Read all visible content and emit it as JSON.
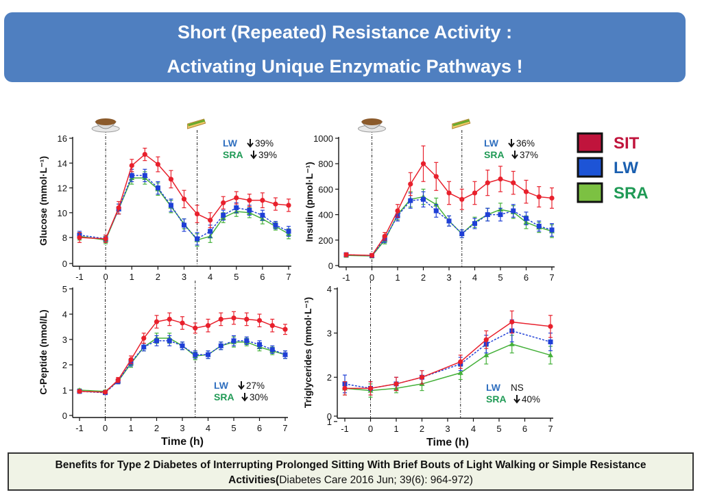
{
  "header": {
    "title_line1": "Short (Repeated) Resistance Activity :",
    "title_line2": "Activating Unique Enzymatic Pathways !"
  },
  "caption": {
    "bold_text": "Benefits for Type 2 Diabetes of Interrupting Prolonged Sitting With Brief Bouts of Light Walking or Simple Resistance Activities(",
    "citation": "Diabetes Care 2016 Jun; 39(6): 964-972)"
  },
  "legend": {
    "items": [
      {
        "label": "SIT",
        "color": "#c0143c",
        "text_color": "#c0143c"
      },
      {
        "label": "LW",
        "color": "#1d54d6",
        "text_color": "#1a5fb0"
      },
      {
        "label": "SRA",
        "color": "#7cc142",
        "text_color": "#1f9a55"
      }
    ]
  },
  "colors": {
    "SIT": "#e8202c",
    "LW": "#1f3fd6",
    "SRA": "#44b039",
    "LW_text": "#2f6fbf",
    "SRA_text": "#1f9a55"
  },
  "icons": {
    "meal1": "breakfast-bowl-icon",
    "meal2": "sandwich-icon"
  },
  "chart_data": [
    {
      "type": "line",
      "title": "",
      "xlabel": "",
      "ylabel": "Glucose (mmol·L⁻¹)",
      "x": [
        -1,
        0,
        0.5,
        1,
        1.5,
        2,
        2.5,
        3,
        3.5,
        4,
        4.5,
        5,
        5.5,
        6,
        6.5,
        7
      ],
      "xticks": [
        "-1",
        "0",
        "1",
        "2",
        "3",
        "4",
        "5",
        "6",
        "7"
      ],
      "yticks": [
        "0",
        "8",
        "10",
        "12",
        "14",
        "16"
      ],
      "ylim": [
        0,
        16
      ],
      "vlines": [
        0,
        3.5
      ],
      "series": [
        {
          "name": "SIT",
          "values": [
            8.0,
            7.9,
            10.4,
            13.8,
            14.7,
            13.9,
            12.7,
            11.1,
            9.9,
            9.4,
            10.8,
            11.2,
            11.0,
            11.0,
            10.7,
            10.6
          ],
          "err": [
            0.4,
            0.3,
            0.5,
            0.5,
            0.5,
            0.6,
            0.7,
            0.7,
            0.7,
            0.6,
            0.5,
            0.5,
            0.5,
            0.6,
            0.5,
            0.5
          ]
        },
        {
          "name": "LW",
          "values": [
            8.2,
            7.9,
            10.3,
            13.0,
            13.0,
            12.0,
            10.6,
            9.0,
            7.9,
            8.5,
            9.8,
            10.4,
            10.2,
            9.8,
            9.0,
            8.5
          ],
          "err": [
            0.3,
            0.3,
            0.4,
            0.5,
            0.5,
            0.5,
            0.5,
            0.5,
            0.5,
            0.5,
            0.4,
            0.4,
            0.4,
            0.4,
            0.3,
            0.4
          ]
        },
        {
          "name": "SRA",
          "values": [
            8.1,
            7.8,
            10.3,
            12.8,
            12.8,
            11.9,
            10.5,
            9.1,
            7.8,
            8.1,
            9.6,
            10.1,
            10.0,
            9.5,
            8.9,
            8.3
          ],
          "err": [
            0.3,
            0.3,
            0.4,
            0.5,
            0.5,
            0.5,
            0.5,
            0.4,
            0.5,
            0.5,
            0.4,
            0.4,
            0.4,
            0.4,
            0.3,
            0.4
          ]
        }
      ],
      "annotations": [
        {
          "group": "LW",
          "text": "39%"
        },
        {
          "group": "SRA",
          "text": "39%"
        }
      ]
    },
    {
      "type": "line",
      "title": "",
      "xlabel": "",
      "ylabel": "Insulin (pmol·L⁻¹)",
      "x": [
        -1,
        0,
        0.5,
        1,
        1.5,
        2,
        2.5,
        3,
        3.5,
        4,
        4.5,
        5,
        5.5,
        6,
        6.5,
        7
      ],
      "xticks": [
        "-1",
        "0",
        "1",
        "2",
        "3",
        "4",
        "5",
        "6",
        "7"
      ],
      "yticks": [
        "0",
        "200",
        "400",
        "600",
        "800",
        "1000"
      ],
      "ylim": [
        0,
        1000
      ],
      "vlines": [
        0,
        3.5
      ],
      "series": [
        {
          "name": "SIT",
          "values": [
            85,
            80,
            230,
            430,
            640,
            800,
            700,
            570,
            520,
            570,
            650,
            680,
            650,
            580,
            540,
            530
          ],
          "err": [
            15,
            15,
            30,
            50,
            90,
            140,
            110,
            90,
            80,
            90,
            100,
            100,
            90,
            90,
            80,
            80
          ]
        },
        {
          "name": "LW",
          "values": [
            85,
            78,
            210,
            390,
            510,
            520,
            430,
            350,
            250,
            330,
            400,
            400,
            430,
            370,
            310,
            280
          ],
          "err": [
            15,
            15,
            30,
            40,
            60,
            60,
            50,
            40,
            30,
            40,
            50,
            50,
            50,
            50,
            40,
            50
          ]
        },
        {
          "name": "SRA",
          "values": [
            80,
            75,
            200,
            400,
            520,
            540,
            480,
            350,
            250,
            340,
            400,
            440,
            420,
            340,
            300,
            270
          ],
          "err": [
            15,
            15,
            30,
            40,
            60,
            60,
            50,
            40,
            30,
            40,
            50,
            50,
            50,
            50,
            40,
            50
          ]
        }
      ],
      "annotations": [
        {
          "group": "LW",
          "text": "36%"
        },
        {
          "group": "SRA",
          "text": "37%"
        }
      ]
    },
    {
      "type": "line",
      "title": "",
      "xlabel": "Time (h)",
      "ylabel": "C-Peptide (nmol/L)",
      "x": [
        -1,
        0,
        0.5,
        1,
        1.5,
        2,
        2.5,
        3,
        3.5,
        4,
        4.5,
        5,
        5.5,
        6,
        6.5,
        7
      ],
      "xticks": [
        "-1",
        "0",
        "1",
        "2",
        "3",
        "4",
        "5",
        "6",
        "7"
      ],
      "yticks": [
        "0",
        "1",
        "2",
        "3",
        "4",
        "5"
      ],
      "ylim": [
        0,
        5
      ],
      "vlines": [
        0,
        3.5
      ],
      "series": [
        {
          "name": "SIT",
          "values": [
            0.95,
            0.92,
            1.4,
            2.2,
            3.05,
            3.7,
            3.8,
            3.65,
            3.45,
            3.55,
            3.8,
            3.85,
            3.8,
            3.75,
            3.55,
            3.4
          ],
          "err": [
            0.05,
            0.05,
            0.1,
            0.15,
            0.2,
            0.25,
            0.25,
            0.25,
            0.2,
            0.25,
            0.25,
            0.25,
            0.25,
            0.25,
            0.25,
            0.2
          ]
        },
        {
          "name": "LW",
          "values": [
            0.95,
            0.9,
            1.35,
            2.1,
            2.7,
            2.95,
            2.95,
            2.75,
            2.4,
            2.4,
            2.75,
            2.95,
            2.95,
            2.8,
            2.6,
            2.4
          ],
          "err": [
            0.05,
            0.05,
            0.1,
            0.15,
            0.15,
            0.2,
            0.2,
            0.15,
            0.15,
            0.15,
            0.15,
            0.2,
            0.15,
            0.15,
            0.15,
            0.15
          ]
        },
        {
          "name": "SRA",
          "values": [
            1.0,
            0.95,
            1.35,
            2.05,
            2.7,
            3.05,
            3.05,
            2.75,
            2.35,
            2.4,
            2.75,
            2.9,
            2.9,
            2.7,
            2.55,
            2.4
          ],
          "err": [
            0.05,
            0.05,
            0.1,
            0.15,
            0.15,
            0.2,
            0.2,
            0.15,
            0.15,
            0.15,
            0.15,
            0.2,
            0.15,
            0.15,
            0.15,
            0.15
          ]
        }
      ],
      "annotations": [
        {
          "group": "LW",
          "text": "27%"
        },
        {
          "group": "SRA",
          "text": "30%"
        }
      ]
    },
    {
      "type": "line",
      "title": "",
      "xlabel": "Time (h)",
      "ylabel": "Triglycerides (mmol·L⁻¹)",
      "x": [
        -1,
        0,
        1,
        2,
        3.5,
        4.5,
        5.5,
        7
      ],
      "xticks": [
        "-1",
        "0",
        "1",
        "2",
        "3",
        "4",
        "5",
        "6",
        "7"
      ],
      "yticks": [
        "0",
        "1",
        "2",
        "3",
        "4"
      ],
      "ylim": [
        0,
        4
      ],
      "vlines": [
        0,
        3.5
      ],
      "series": [
        {
          "name": "SIT",
          "values": [
            1.75,
            1.75,
            1.85,
            2.0,
            2.35,
            2.85,
            3.25,
            3.15
          ],
          "err": [
            0.15,
            0.15,
            0.15,
            0.15,
            0.15,
            0.2,
            0.25,
            0.25
          ]
        },
        {
          "name": "LW",
          "values": [
            1.85,
            1.75,
            1.85,
            2.0,
            2.3,
            2.75,
            3.05,
            2.8
          ],
          "err": [
            0.2,
            0.15,
            0.15,
            0.15,
            0.15,
            0.2,
            0.25,
            0.2
          ]
        },
        {
          "name": "SRA",
          "values": [
            1.75,
            1.7,
            1.75,
            1.85,
            2.1,
            2.5,
            2.75,
            2.5
          ],
          "err": [
            0.15,
            0.15,
            0.1,
            0.15,
            0.15,
            0.2,
            0.2,
            0.2
          ]
        }
      ],
      "annotations": [
        {
          "group": "LW",
          "text": "NS"
        },
        {
          "group": "SRA",
          "text": "40%"
        }
      ]
    }
  ]
}
